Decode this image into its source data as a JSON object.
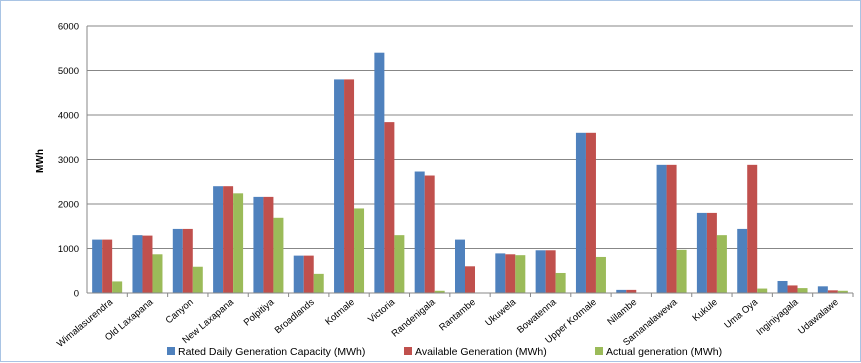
{
  "chart_data": {
    "type": "bar",
    "title": "",
    "xlabel": "",
    "ylabel": "MWh",
    "ylim": [
      0,
      6000
    ],
    "yticks": [
      0,
      1000,
      2000,
      3000,
      4000,
      5000,
      6000
    ],
    "grid": true,
    "legend_position": "bottom",
    "categories": [
      "Wimalasurendra",
      "Old Laxapana",
      "Canyon",
      "New Laxapana",
      "Polpitiya",
      "Broadlands",
      "Kotmale",
      "Victoria",
      "Randenigala",
      "Rantambe",
      "Ukuwela",
      "Bowatenna",
      "Upper Kotmale",
      "Nilambe",
      "Samanalawewa",
      "Kukule",
      "Uma Oya",
      "Inginiyagala",
      "Udawalawe"
    ],
    "series": [
      {
        "name": "Rated Daily Generation Capacity (MWh)",
        "color": "#4f81bd",
        "values": [
          1200,
          1300,
          1440,
          2400,
          2160,
          840,
          4800,
          5400,
          2730,
          1200,
          890,
          960,
          3600,
          70,
          2880,
          1800,
          1440,
          270,
          150
        ]
      },
      {
        "name": "Available Generation (MWh)",
        "color": "#c0504d",
        "values": [
          1200,
          1290,
          1440,
          2400,
          2160,
          840,
          4800,
          3840,
          2640,
          600,
          870,
          960,
          3600,
          70,
          2880,
          1800,
          2880,
          170,
          60
        ]
      },
      {
        "name": "Actual generation (MWh)",
        "color": "#9bbb59",
        "values": [
          260,
          870,
          590,
          2240,
          1690,
          430,
          1900,
          1300,
          50,
          0,
          850,
          450,
          810,
          0,
          970,
          1300,
          100,
          110,
          50
        ]
      }
    ]
  }
}
